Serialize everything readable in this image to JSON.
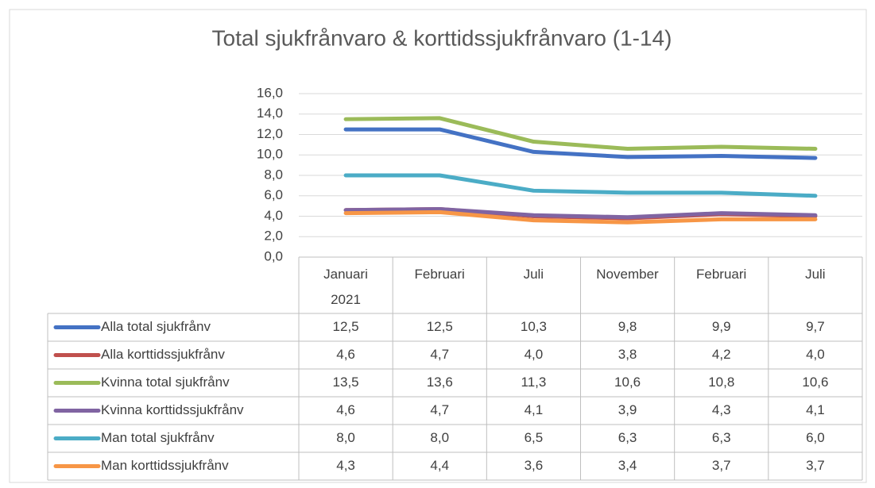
{
  "chart_data": {
    "type": "line",
    "title": "Total sjukfrånvaro & korttidssjukfrånvaro (1-14)",
    "categories": [
      "Januari 2021",
      "Februari",
      "Juli",
      "November",
      "Februari",
      "Juli"
    ],
    "series": [
      {
        "name": "Alla total sjukfrånv",
        "color": "#4472c4",
        "values": [
          12.5,
          12.5,
          10.3,
          9.8,
          9.9,
          9.7
        ],
        "value_labels": [
          "12,5",
          "12,5",
          "10,3",
          "9,8",
          "9,9",
          "9,7"
        ]
      },
      {
        "name": "Alla korttidssjukfrånv",
        "color": "#c0504d",
        "values": [
          4.6,
          4.7,
          4.0,
          3.8,
          4.2,
          4.0
        ],
        "value_labels": [
          "4,6",
          "4,7",
          "4,0",
          "3,8",
          "4,2",
          "4,0"
        ]
      },
      {
        "name": "Kvinna total sjukfrånv",
        "color": "#9bbb59",
        "values": [
          13.5,
          13.6,
          11.3,
          10.6,
          10.8,
          10.6
        ],
        "value_labels": [
          "13,5",
          "13,6",
          "11,3",
          "10,6",
          "10,8",
          "10,6"
        ]
      },
      {
        "name": "Kvinna korttidssjukfrånv",
        "color": "#8064a2",
        "values": [
          4.6,
          4.7,
          4.1,
          3.9,
          4.3,
          4.1
        ],
        "value_labels": [
          "4,6",
          "4,7",
          "4,1",
          "3,9",
          "4,3",
          "4,1"
        ]
      },
      {
        "name": "Man total sjukfrånv",
        "color": "#4bacc6",
        "values": [
          8.0,
          8.0,
          6.5,
          6.3,
          6.3,
          6.0
        ],
        "value_labels": [
          "8,0",
          "8,0",
          "6,5",
          "6,3",
          "6,3",
          "6,0"
        ]
      },
      {
        "name": "Man korttidssjukfrånv",
        "color": "#f79646",
        "values": [
          4.3,
          4.4,
          3.6,
          3.4,
          3.7,
          3.7
        ],
        "value_labels": [
          "4,3",
          "4,4",
          "3,6",
          "3,4",
          "3,7",
          "3,7"
        ]
      }
    ],
    "ylim": [
      0,
      16
    ],
    "yticks": [
      {
        "value": 0,
        "label": "0,0"
      },
      {
        "value": 2,
        "label": "2,0"
      },
      {
        "value": 4,
        "label": "4,0"
      },
      {
        "value": 6,
        "label": "6,0"
      },
      {
        "value": 8,
        "label": "8,0"
      },
      {
        "value": 10,
        "label": "10,0"
      },
      {
        "value": 12,
        "label": "12,0"
      },
      {
        "value": 14,
        "label": "14,0"
      },
      {
        "value": 16,
        "label": "16,0"
      }
    ],
    "grid": true
  }
}
